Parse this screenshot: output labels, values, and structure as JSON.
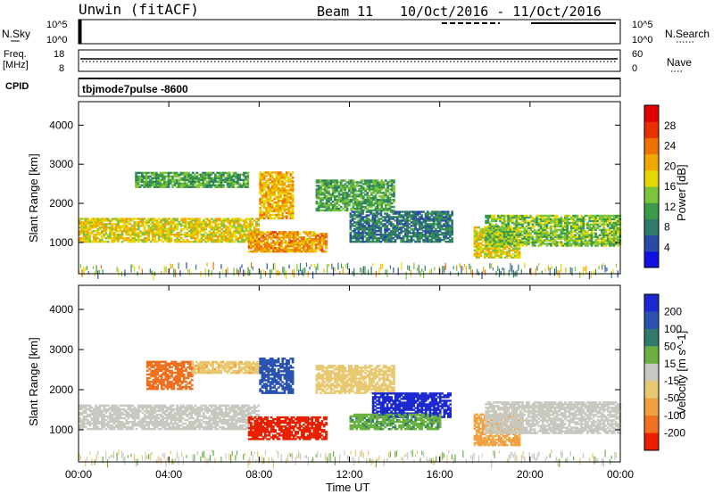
{
  "header": {
    "station": "Unwin (fitACF)",
    "beam": "Beam 11",
    "date_range": "10/Oct/2016 - 11/Oct/2016"
  },
  "strip_panels": {
    "nsky_label": "N.Sky",
    "nsky_ticks": [
      "10^5",
      "10^0"
    ],
    "nsearch_label": "N.Search",
    "nsearch_ticks": [
      "10^5",
      "10^0"
    ],
    "freq_label_line1": "Freq.",
    "freq_label_line2": "[MHz]",
    "freq_ticks": [
      "18",
      "8"
    ],
    "nave_label": "Nave",
    "nave_ticks": [
      "60",
      "0"
    ],
    "cpid_label": "CPID",
    "cpid_value": "tbjmode7pulse -8600"
  },
  "colors": {
    "power_scale": [
      "#1010e0",
      "#2a4aa8",
      "#2f7a6a",
      "#3a9a4a",
      "#7cc43a",
      "#e6d800",
      "#f0a800",
      "#f07000",
      "#e83000",
      "#e00000"
    ],
    "velocity_scale": [
      "#1c28d0",
      "#2a52b0",
      "#2f7a6a",
      "#6ab040",
      "#c8c8c0",
      "#e8c870",
      "#f0a040",
      "#f07020",
      "#e82000"
    ]
  },
  "chart_data": [
    {
      "type": "heatmap",
      "name": "power-panel",
      "ylabel": "Slant Range [km]",
      "y_ticks": [
        1000,
        2000,
        3000,
        4000
      ],
      "ylim": [
        200,
        4600
      ],
      "x_ticks": [
        "00:00",
        "04:00",
        "08:00",
        "12:00",
        "16:00",
        "20:00",
        "00:00"
      ],
      "xlim_hours": [
        0,
        24
      ],
      "colorbar": {
        "label": "Power [dB]",
        "ticks": [
          4,
          8,
          12,
          16,
          20,
          24,
          28
        ],
        "range": [
          0,
          32
        ]
      },
      "regions": [
        {
          "t": [
            0.0,
            8.0
          ],
          "range_km": [
            1000,
            1600
          ],
          "level": 18
        },
        {
          "t": [
            2.5,
            7.5
          ],
          "range_km": [
            2400,
            2800
          ],
          "level": 12
        },
        {
          "t": [
            7.5,
            11.0
          ],
          "range_km": [
            750,
            1250
          ],
          "level": 22
        },
        {
          "t": [
            8.0,
            9.5
          ],
          "range_km": [
            1600,
            2800
          ],
          "level": 20
        },
        {
          "t": [
            10.5,
            14.0
          ],
          "range_km": [
            1800,
            2600
          ],
          "level": 12
        },
        {
          "t": [
            12.0,
            16.5
          ],
          "range_km": [
            1000,
            1800
          ],
          "level": 8
        },
        {
          "t": [
            17.5,
            19.5
          ],
          "range_km": [
            600,
            1400
          ],
          "level": 18
        },
        {
          "t": [
            18.0,
            24.0
          ],
          "range_km": [
            900,
            1700
          ],
          "level": 14
        }
      ]
    },
    {
      "type": "heatmap",
      "name": "velocity-panel",
      "ylabel": "Slant Range [km]",
      "y_ticks": [
        1000,
        2000,
        3000,
        4000
      ],
      "ylim": [
        200,
        4600
      ],
      "x_ticks": [
        "00:00",
        "04:00",
        "08:00",
        "12:00",
        "16:00",
        "20:00",
        "00:00"
      ],
      "xlim_hours": [
        0,
        24
      ],
      "xlabel": "Time UT",
      "colorbar": {
        "label": "Velocity [m s^-1]",
        "ticks": [
          200,
          100,
          50,
          15,
          -15,
          -50,
          -100,
          -200
        ]
      },
      "regions": [
        {
          "t": [
            0.0,
            8.0
          ],
          "range_km": [
            1000,
            1600
          ],
          "level": 0
        },
        {
          "t": [
            3.0,
            5.0
          ],
          "range_km": [
            2000,
            2700
          ],
          "level": -150
        },
        {
          "t": [
            5.0,
            8.0
          ],
          "range_km": [
            2400,
            2700
          ],
          "level": -40
        },
        {
          "t": [
            7.5,
            11.0
          ],
          "range_km": [
            750,
            1300
          ],
          "level": -220
        },
        {
          "t": [
            8.0,
            9.5
          ],
          "range_km": [
            1900,
            2800
          ],
          "level": 150
        },
        {
          "t": [
            10.5,
            14.0
          ],
          "range_km": [
            1900,
            2600
          ],
          "level": -30
        },
        {
          "t": [
            13.0,
            16.5
          ],
          "range_km": [
            1300,
            1900
          ],
          "level": 220
        },
        {
          "t": [
            12.0,
            16.0
          ],
          "range_km": [
            1000,
            1400
          ],
          "level": 40
        },
        {
          "t": [
            17.5,
            19.5
          ],
          "range_km": [
            600,
            1400
          ],
          "level": -60
        },
        {
          "t": [
            18.0,
            24.0
          ],
          "range_km": [
            900,
            1700
          ],
          "level": 0
        }
      ]
    }
  ]
}
